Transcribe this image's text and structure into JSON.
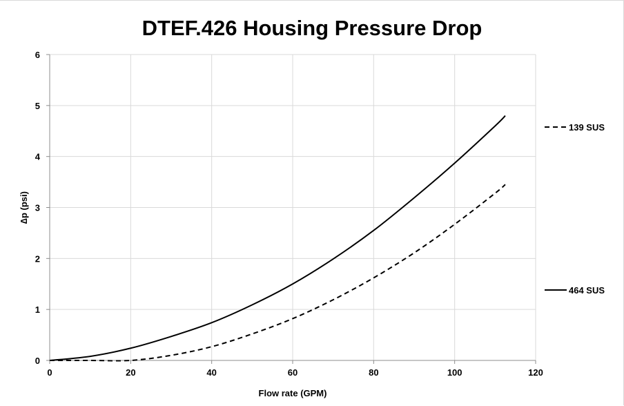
{
  "chart_data": {
    "type": "line",
    "title": "DTEF.426 Housing Pressure Drop",
    "xlabel": "Flow rate (GPM)",
    "ylabel": "∆p (psi)",
    "xlim": [
      0,
      120
    ],
    "ylim": [
      0,
      6
    ],
    "xticks": [
      "0",
      "20",
      "40",
      "60",
      "80",
      "100",
      "120"
    ],
    "yticks": [
      "0",
      "1",
      "2",
      "3",
      "4",
      "5",
      "6"
    ],
    "grid": true,
    "legend_position": "right",
    "series": [
      {
        "name": "139 SUS",
        "line_style": "dashed",
        "color": "#000000",
        "x": [
          0,
          10,
          20,
          30,
          40,
          50,
          60,
          70,
          80,
          90,
          100,
          110,
          112.5
        ],
        "y": [
          0,
          0,
          0,
          0.1,
          0.27,
          0.52,
          0.82,
          1.19,
          1.62,
          2.11,
          2.67,
          3.28,
          3.45
        ]
      },
      {
        "name": "464 SUS",
        "line_style": "solid",
        "color": "#000000",
        "x": [
          0,
          10,
          20,
          30,
          40,
          50,
          60,
          70,
          80,
          90,
          100,
          110,
          112.5
        ],
        "y": [
          0,
          0.08,
          0.24,
          0.47,
          0.74,
          1.09,
          1.5,
          1.99,
          2.55,
          3.19,
          3.87,
          4.6,
          4.8
        ]
      }
    ]
  }
}
